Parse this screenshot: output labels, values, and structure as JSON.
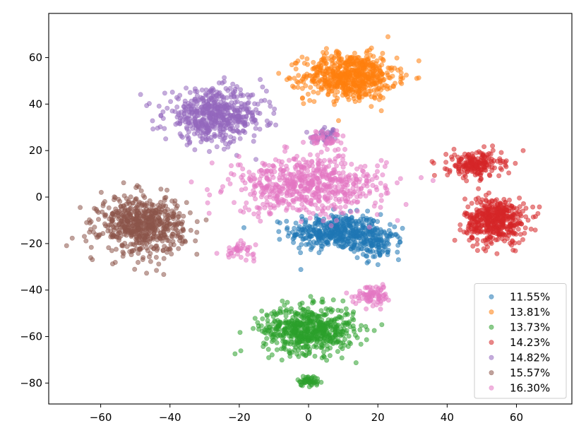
{
  "chart_data": {
    "type": "scatter",
    "title": "",
    "xlabel": "",
    "ylabel": "",
    "xlim": [
      -75,
      76
    ],
    "ylim": [
      -89,
      79
    ],
    "xticks": [
      -60,
      -40,
      -20,
      0,
      20,
      40,
      60
    ],
    "yticks": [
      -80,
      -60,
      -40,
      -20,
      0,
      20,
      40,
      60
    ],
    "grid": false,
    "legend_position": "bottom-right",
    "marker_alpha": 0.55,
    "series": [
      {
        "name": "11.55%",
        "color": "#1f77b4",
        "clusters": [
          {
            "center": [
              8,
              -15
            ],
            "spread": [
              12,
              7
            ],
            "count": 420
          },
          {
            "center": [
              20,
              -20
            ],
            "spread": [
              6,
              6
            ],
            "count": 120
          }
        ]
      },
      {
        "name": "13.81%",
        "color": "#ff7f0e",
        "clusters": [
          {
            "center": [
              12,
              52
            ],
            "spread": [
              12,
              9
            ],
            "count": 650
          }
        ]
      },
      {
        "name": "13.73%",
        "color": "#2ca02c",
        "clusters": [
          {
            "center": [
              0,
              -57
            ],
            "spread": [
              12,
              9
            ],
            "count": 600
          },
          {
            "center": [
              0,
              -79
            ],
            "spread": [
              3,
              2
            ],
            "count": 50
          }
        ]
      },
      {
        "name": "14.23%",
        "color": "#d62728",
        "clusters": [
          {
            "center": [
              54,
              -10
            ],
            "spread": [
              8,
              9
            ],
            "count": 450
          },
          {
            "center": [
              48,
              14
            ],
            "spread": [
              7,
              5
            ],
            "count": 200
          }
        ]
      },
      {
        "name": "14.82%",
        "color": "#9467bd",
        "clusters": [
          {
            "center": [
              -27,
              35
            ],
            "spread": [
              13,
              10
            ],
            "count": 560
          },
          {
            "center": [
              5,
              26
            ],
            "spread": [
              4,
              3
            ],
            "count": 40
          }
        ]
      },
      {
        "name": "15.57%",
        "color": "#8c564b",
        "clusters": [
          {
            "center": [
              -48,
              -12
            ],
            "spread": [
              11,
              11
            ],
            "count": 620
          }
        ]
      },
      {
        "name": "16.30%",
        "color": "#e377c2",
        "clusters": [
          {
            "center": [
              0,
              5
            ],
            "spread": [
              20,
              11
            ],
            "count": 620
          },
          {
            "center": [
              19,
              -42
            ],
            "spread": [
              5,
              4
            ],
            "count": 80
          },
          {
            "center": [
              -20,
              -23
            ],
            "spread": [
              4,
              3
            ],
            "count": 40
          },
          {
            "center": [
              5,
              25
            ],
            "spread": [
              5,
              3
            ],
            "count": 40
          }
        ]
      }
    ]
  }
}
